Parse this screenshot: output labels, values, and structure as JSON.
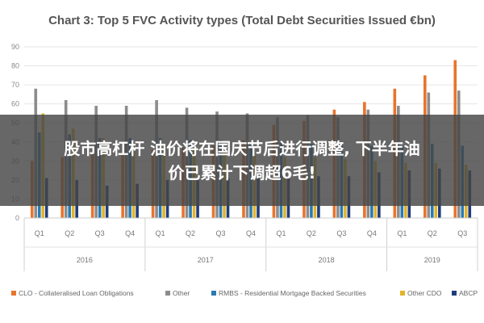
{
  "chart_data": {
    "type": "bar",
    "title": "Chart 3: Top 5 FVC Activity types (Total Debt Securities Issued €bn)",
    "ylim": [
      0,
      90
    ],
    "yticks": [
      0,
      10,
      20,
      30,
      40,
      50,
      60,
      70,
      80,
      90
    ],
    "grid": true,
    "legend_position": "bottom",
    "categories": [
      "Q1",
      "Q2",
      "Q3",
      "Q4",
      "Q1",
      "Q2",
      "Q3",
      "Q4",
      "Q1",
      "Q2",
      "Q3",
      "Q4",
      "Q1",
      "Q2",
      "Q3"
    ],
    "groups": [
      {
        "label": "2016",
        "count": 4
      },
      {
        "label": "2017",
        "count": 4
      },
      {
        "label": "2018",
        "count": 4
      },
      {
        "label": "2019",
        "count": 3
      }
    ],
    "series": [
      {
        "name": "CLO - Collateralised Loan Obligations",
        "color": "#e8742c",
        "values": [
          30,
          32,
          34,
          34,
          36,
          37,
          38,
          41,
          49,
          51,
          57,
          61,
          68,
          75,
          83
        ]
      },
      {
        "name": "Other",
        "color": "#8c8c8c",
        "values": [
          68,
          62,
          59,
          59,
          62,
          58,
          56,
          55,
          53,
          54,
          53,
          57,
          59,
          66,
          67
        ]
      },
      {
        "name": "RMBS - Residential Mortgage Backed Securities",
        "color": "#2a7ab0",
        "values": [
          45,
          44,
          42,
          42,
          42,
          41,
          41,
          39,
          40,
          39,
          38,
          38,
          38,
          39,
          38
        ]
      },
      {
        "name": "Other CDO",
        "color": "#e2b32b",
        "values": [
          55,
          47,
          42,
          40,
          38,
          36,
          35,
          33,
          32,
          32,
          31,
          30,
          29,
          29,
          28
        ]
      },
      {
        "name": "ABCP",
        "color": "#1f3d7a",
        "values": [
          21,
          20,
          17,
          18,
          20,
          20,
          21,
          21,
          22,
          22,
          22,
          24,
          25,
          26,
          25
        ]
      }
    ]
  },
  "overlay": {
    "line1": "股市高杠杆 油价将在国庆节后进行调整, 下半年油",
    "line2": "价已累计下调超6毛!"
  }
}
